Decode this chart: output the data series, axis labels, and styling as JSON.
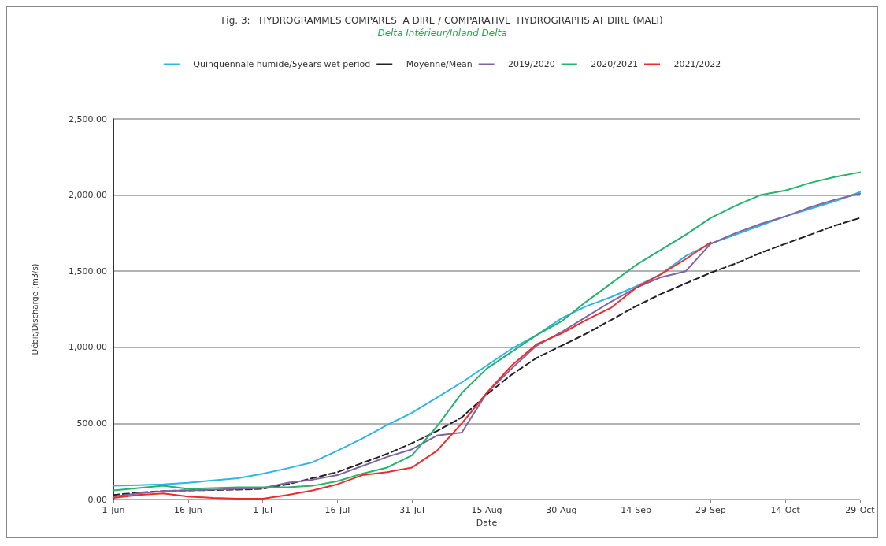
{
  "chart_data": {
    "type": "line",
    "title": "Fig. 3:   HYDROGRAMMES COMPARES  A DIRE / COMPARATIVE  HYDROGRAPHS AT DIRE (MALI)",
    "subtitle": "Delta Intérieur/Inland Delta",
    "xlabel": "Date",
    "ylabel": "Débit/Discharge (m3/s)",
    "x": [
      "--06-01",
      "--06-06",
      "--06-11",
      "--06-16",
      "--06-21",
      "--06-26",
      "--07-01",
      "--07-06",
      "--07-11",
      "--07-16",
      "--07-21",
      "--07-26",
      "--07-31",
      "--08-05",
      "--08-10",
      "--08-15",
      "--08-20",
      "--08-25",
      "--08-30",
      "--09-04",
      "--09-09",
      "--09-14",
      "--09-19",
      "--09-24",
      "--09-29",
      "--10-04",
      "--10-09",
      "--10-14",
      "--10-19",
      "--10-24",
      "--10-29"
    ],
    "series": [
      {
        "name": "Quinquennale humide/5years wet period",
        "color": "#2fb4e6",
        "line_style": "solid",
        "values": [
          90,
          95,
          100,
          110,
          125,
          140,
          170,
          205,
          245,
          320,
          400,
          490,
          570,
          670,
          770,
          880,
          990,
          1080,
          1190,
          1270,
          1330,
          1400,
          1480,
          1600,
          1680,
          1740,
          1800,
          1860,
          1910,
          1960,
          2020
        ]
      },
      {
        "name": "Moyenne/Mean",
        "color": "#222222",
        "line_style": "dashed",
        "values": [
          30,
          45,
          55,
          60,
          62,
          65,
          70,
          100,
          140,
          180,
          240,
          300,
          370,
          450,
          540,
          690,
          820,
          930,
          1010,
          1090,
          1180,
          1270,
          1350,
          1420,
          1490,
          1550,
          1620,
          1680,
          1740,
          1800,
          1850
        ]
      },
      {
        "name": "2019/2020",
        "color": "#8064a2",
        "line_style": "solid",
        "values": [
          20,
          40,
          55,
          60,
          65,
          70,
          75,
          110,
          130,
          160,
          220,
          280,
          330,
          420,
          440,
          700,
          860,
          1010,
          1100,
          1200,
          1300,
          1390,
          1460,
          1500,
          1680,
          1750,
          1810,
          1860,
          1920,
          1970,
          2010
        ]
      },
      {
        "name": "2020/2021",
        "color": "#24b36b",
        "line_style": "solid",
        "values": [
          60,
          75,
          90,
          70,
          75,
          80,
          80,
          80,
          90,
          120,
          170,
          210,
          290,
          480,
          700,
          860,
          970,
          1080,
          1170,
          1300,
          1420,
          1540,
          1640,
          1740,
          1850,
          1930,
          2000,
          2030,
          2080,
          2120,
          2150
        ]
      },
      {
        "name": "2021/2022",
        "color": "#ee2b2b",
        "line_style": "solid",
        "values": [
          10,
          30,
          40,
          20,
          10,
          5,
          5,
          30,
          60,
          100,
          160,
          180,
          210,
          320,
          500,
          700,
          880,
          1020,
          1090,
          1180,
          1260,
          1390,
          1480,
          1580,
          1690,
          null,
          null,
          null,
          null,
          null,
          null
        ]
      }
    ],
    "xlim": [
      "--06-01",
      "--10-29"
    ],
    "xticks": [
      {
        "value": "--06-01",
        "label": "1-Jun"
      },
      {
        "value": "--06-16",
        "label": "16-Jun"
      },
      {
        "value": "--07-01",
        "label": "1-Jul"
      },
      {
        "value": "--07-16",
        "label": "16-Jul"
      },
      {
        "value": "--07-31",
        "label": "31-Jul"
      },
      {
        "value": "--08-15",
        "label": "15-Aug"
      },
      {
        "value": "--08-30",
        "label": "30-Aug"
      },
      {
        "value": "--09-14",
        "label": "14-Sep"
      },
      {
        "value": "--09-29",
        "label": "29-Sep"
      },
      {
        "value": "--10-14",
        "label": "14-Oct"
      },
      {
        "value": "--10-29",
        "label": "29-Oct"
      }
    ],
    "ylim": [
      0,
      2500
    ],
    "yticks": [
      {
        "value": 0,
        "label": "0.00"
      },
      {
        "value": 500,
        "label": "500.00"
      },
      {
        "value": 1000,
        "label": "1,000.00"
      },
      {
        "value": 1500,
        "label": "1,500.00"
      },
      {
        "value": 2000,
        "label": "2,000.00"
      },
      {
        "value": 2500,
        "label": "2,500.00"
      }
    ],
    "grid": "y",
    "legend": "top",
    "marker": "none"
  }
}
